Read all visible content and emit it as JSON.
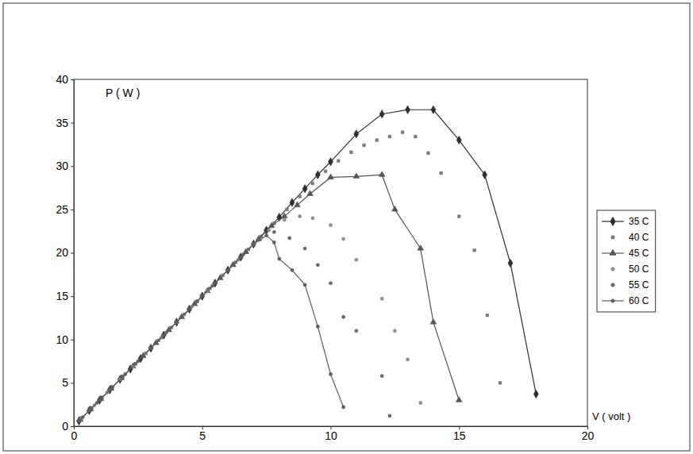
{
  "chart_data": {
    "type": "line",
    "x_label": "V ( volt )",
    "y_label": "P ( W )",
    "xlim": [
      0,
      20
    ],
    "xticks": [
      0,
      5,
      10,
      15,
      20
    ],
    "ylim": [
      0,
      40
    ],
    "yticks": [
      0,
      5,
      10,
      15,
      20,
      25,
      30,
      35,
      40
    ],
    "grid": false,
    "legend": "right",
    "series": [
      {
        "name": "35 C",
        "color": "#2e2e2e",
        "marker": "diamond",
        "line_style": "solid",
        "x": [
          0.2,
          0.6,
          1.0,
          1.4,
          1.8,
          2.2,
          2.6,
          3.0,
          3.5,
          4.0,
          4.5,
          5.0,
          5.5,
          6.0,
          6.5,
          7.0,
          7.5,
          8.0,
          8.5,
          9.0,
          9.5,
          10.0,
          11.0,
          12.0,
          13.0,
          14.0,
          15.0,
          16.0,
          17.0,
          18.0
        ],
        "values": [
          0.6,
          1.8,
          3.0,
          4.2,
          5.4,
          6.6,
          7.8,
          9.0,
          10.5,
          12.0,
          13.5,
          15.0,
          16.5,
          18.0,
          19.5,
          21.0,
          22.6,
          24.1,
          25.8,
          27.4,
          29.0,
          30.5,
          33.7,
          36.0,
          36.5,
          36.5,
          33.0,
          29.0,
          18.8,
          3.7
        ]
      },
      {
        "name": "40 C",
        "color": "#7a7a7a",
        "marker": "square",
        "line_style": "none",
        "x": [
          0.3,
          0.7,
          1.1,
          1.5,
          1.9,
          2.4,
          2.8,
          3.3,
          3.8,
          4.3,
          4.8,
          5.3,
          5.8,
          6.3,
          6.8,
          7.3,
          7.8,
          8.3,
          8.8,
          9.3,
          9.8,
          10.3,
          10.8,
          11.3,
          11.8,
          12.3,
          12.8,
          13.3,
          13.8,
          14.3,
          15.0,
          15.6,
          16.1,
          16.6
        ],
        "values": [
          0.9,
          2.1,
          3.3,
          4.5,
          5.7,
          7.2,
          8.4,
          9.9,
          11.4,
          12.9,
          14.4,
          15.9,
          17.4,
          18.9,
          20.4,
          21.9,
          23.4,
          25.0,
          26.5,
          28.0,
          29.4,
          30.6,
          31.6,
          32.4,
          33.0,
          33.4,
          33.9,
          33.4,
          31.5,
          29.2,
          24.2,
          20.3,
          12.8,
          5.0
        ]
      },
      {
        "name": "45 C",
        "color": "#555555",
        "marker": "triangle",
        "line_style": "solid",
        "x": [
          0.25,
          0.65,
          1.05,
          1.45,
          1.85,
          2.3,
          2.7,
          3.2,
          3.7,
          4.2,
          4.7,
          5.2,
          5.7,
          6.2,
          6.7,
          7.2,
          7.7,
          8.2,
          8.7,
          9.2,
          10.0,
          11.0,
          12.0,
          12.5,
          13.5,
          14.0,
          15.0
        ],
        "values": [
          0.75,
          1.95,
          3.15,
          4.35,
          5.55,
          6.9,
          8.1,
          9.6,
          11.1,
          12.6,
          14.1,
          15.6,
          17.1,
          18.6,
          20.1,
          21.6,
          23.1,
          24.2,
          25.5,
          26.8,
          28.7,
          28.8,
          29.0,
          25.0,
          20.5,
          12.0,
          3.0
        ]
      },
      {
        "name": "50 C",
        "color": "#8c8c8c",
        "marker": "circle",
        "line_style": "none",
        "x": [
          0.3,
          0.8,
          1.3,
          1.8,
          2.3,
          2.8,
          3.4,
          4.0,
          4.6,
          5.2,
          5.8,
          6.4,
          7.0,
          7.6,
          8.2,
          8.8,
          9.3,
          10.0,
          10.5,
          11.0,
          12.0,
          12.5,
          13.0,
          13.5
        ],
        "values": [
          0.9,
          2.4,
          3.9,
          5.4,
          6.9,
          8.4,
          10.2,
          12.0,
          13.8,
          15.6,
          17.4,
          19.2,
          21.0,
          22.6,
          23.8,
          24.2,
          24.0,
          23.2,
          21.6,
          19.2,
          14.7,
          11.0,
          7.7,
          2.7
        ]
      },
      {
        "name": "55 C",
        "color": "#666666",
        "marker": "circle",
        "line_style": "none",
        "x": [
          0.35,
          0.9,
          1.4,
          1.9,
          2.4,
          3.0,
          3.6,
          4.2,
          4.8,
          5.4,
          6.0,
          6.6,
          7.2,
          7.8,
          8.4,
          9.0,
          9.5,
          10.0,
          10.5,
          11.0,
          12.0,
          12.3
        ],
        "values": [
          1.05,
          2.7,
          4.2,
          5.7,
          7.2,
          9.0,
          10.8,
          12.6,
          14.4,
          16.2,
          18.0,
          19.8,
          21.5,
          22.4,
          21.7,
          20.5,
          18.6,
          16.5,
          12.6,
          11.0,
          5.8,
          1.2
        ]
      },
      {
        "name": "60 C",
        "color": "#5e5e5e",
        "marker": "circle",
        "line_style": "solid",
        "x": [
          0.2,
          0.6,
          1.0,
          1.5,
          2.0,
          2.5,
          3.0,
          3.5,
          4.0,
          4.5,
          5.0,
          5.5,
          6.0,
          6.5,
          7.0,
          7.5,
          7.8,
          8.0,
          8.5,
          9.0,
          9.5,
          10.0,
          10.5
        ],
        "values": [
          0.6,
          1.8,
          3.0,
          4.5,
          6.0,
          7.5,
          9.0,
          10.5,
          12.0,
          13.5,
          15.0,
          16.5,
          18.0,
          19.5,
          21.0,
          22.0,
          21.2,
          19.3,
          18.0,
          16.3,
          11.5,
          6.0,
          2.2
        ]
      }
    ]
  }
}
